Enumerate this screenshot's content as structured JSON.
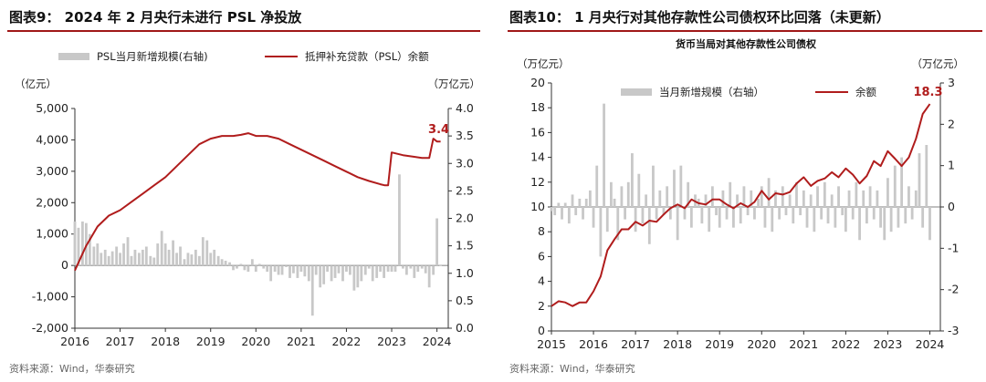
{
  "charts": [
    {
      "title": "图表9： 2024 年 2 月央行未进行 PSL 净投放",
      "source": "资料来源：Wind，华泰研究",
      "chart_data": {
        "type": "bar+line",
        "subtitle": "",
        "y_left_unit": "（亿元）",
        "y_right_unit": "（万亿元）",
        "ylim_left": [
          -2000,
          5000
        ],
        "ylim_right": [
          0.0,
          4.0
        ],
        "yticks_left": [
          "5,000",
          "4,000",
          "3,000",
          "2,000",
          "1,000",
          "0",
          "-1,000",
          "-2,000"
        ],
        "yticks_right": [
          "4.0",
          "3.5",
          "3.0",
          "2.5",
          "2.0",
          "1.5",
          "1.0",
          "0.5",
          "0.0"
        ],
        "x_ticks": [
          "2016",
          "2017",
          "2018",
          "2019",
          "2020",
          "2021",
          "2022",
          "2023",
          "2024"
        ],
        "x_range": [
          2016.0,
          2024.25
        ],
        "legend": "top",
        "bar_series": {
          "name": "PSL当月新增规模(右轴)",
          "color": "#c8c8c8",
          "axis": "left",
          "x": [
            2016.0,
            2016.08,
            2016.17,
            2016.25,
            2016.33,
            2016.42,
            2016.5,
            2016.58,
            2016.67,
            2016.75,
            2016.83,
            2016.92,
            2017.0,
            2017.08,
            2017.17,
            2017.25,
            2017.33,
            2017.42,
            2017.5,
            2017.58,
            2017.67,
            2017.75,
            2017.83,
            2017.92,
            2018.0,
            2018.08,
            2018.17,
            2018.25,
            2018.33,
            2018.42,
            2018.5,
            2018.58,
            2018.67,
            2018.75,
            2018.83,
            2018.92,
            2019.0,
            2019.08,
            2019.17,
            2019.25,
            2019.33,
            2019.42,
            2019.5,
            2019.58,
            2019.67,
            2019.75,
            2019.83,
            2019.92,
            2020.0,
            2020.08,
            2020.17,
            2020.25,
            2020.33,
            2020.42,
            2020.5,
            2020.58,
            2020.67,
            2020.75,
            2020.83,
            2020.92,
            2021.0,
            2021.08,
            2021.17,
            2021.25,
            2021.33,
            2021.42,
            2021.5,
            2021.58,
            2021.67,
            2021.75,
            2021.83,
            2021.92,
            2022.0,
            2022.08,
            2022.17,
            2022.25,
            2022.33,
            2022.42,
            2022.5,
            2022.58,
            2022.67,
            2022.75,
            2022.83,
            2022.92,
            2023.0,
            2023.08,
            2023.17,
            2023.25,
            2023.33,
            2023.42,
            2023.5,
            2023.58,
            2023.67,
            2023.75,
            2023.83,
            2023.92,
            2024.0,
            2024.08
          ],
          "values": [
            1400,
            1200,
            1400,
            1350,
            1000,
            600,
            700,
            400,
            500,
            300,
            450,
            600,
            400,
            700,
            900,
            300,
            500,
            400,
            500,
            600,
            300,
            250,
            700,
            1100,
            700,
            500,
            800,
            400,
            600,
            200,
            400,
            350,
            500,
            300,
            900,
            800,
            400,
            500,
            300,
            200,
            150,
            100,
            -150,
            -100,
            50,
            -150,
            -200,
            200,
            -200,
            50,
            -100,
            -200,
            -500,
            -200,
            -300,
            -300,
            -50,
            -400,
            -250,
            -400,
            -200,
            -350,
            -500,
            -1600,
            -300,
            -700,
            -600,
            -200,
            -500,
            -400,
            -250,
            -500,
            -200,
            -300,
            -800,
            -700,
            -500,
            -300,
            -100,
            -500,
            -400,
            -200,
            -400,
            -200,
            -200,
            -200,
            2900,
            -100,
            -300,
            -100,
            -400,
            -200,
            -100,
            -250,
            -700,
            -300,
            1500,
            0
          ]
        },
        "line_series": {
          "name": "抵押补充贷款（PSL）余额",
          "color": "#b01c1c",
          "axis": "right",
          "x": [
            2016.0,
            2016.25,
            2016.5,
            2016.75,
            2017.0,
            2017.25,
            2017.5,
            2017.75,
            2018.0,
            2018.25,
            2018.5,
            2018.75,
            2019.0,
            2019.25,
            2019.5,
            2019.67,
            2019.83,
            2020.0,
            2020.25,
            2020.5,
            2020.75,
            2021.0,
            2021.25,
            2021.5,
            2021.75,
            2022.0,
            2022.25,
            2022.5,
            2022.75,
            2022.85,
            2022.92,
            2023.0,
            2023.25,
            2023.5,
            2023.67,
            2023.83,
            2023.92,
            2024.0,
            2024.08
          ],
          "values": [
            1.05,
            1.5,
            1.85,
            2.05,
            2.15,
            2.3,
            2.45,
            2.6,
            2.75,
            2.95,
            3.15,
            3.35,
            3.45,
            3.5,
            3.5,
            3.52,
            3.55,
            3.5,
            3.5,
            3.45,
            3.35,
            3.25,
            3.15,
            3.05,
            2.95,
            2.85,
            2.75,
            2.68,
            2.62,
            2.6,
            2.6,
            3.2,
            3.15,
            3.12,
            3.1,
            3.1,
            3.45,
            3.4,
            3.4
          ]
        },
        "annotation": {
          "text": "3.4",
          "x": 2024.08,
          "y": 3.4
        }
      }
    },
    {
      "title": "图表10： 1 月央行对其他存款性公司债权环比回落（未更新）",
      "source": "资料来源：Wind，华泰研究",
      "chart_data": {
        "type": "bar+line",
        "subtitle": "货币当局对其他存款性公司债权",
        "y_left_unit": "（万亿元）",
        "y_right_unit": "（万亿元）",
        "ylim_left": [
          0,
          20
        ],
        "ylim_right": [
          -3,
          3
        ],
        "yticks_left": [
          "20",
          "18",
          "16",
          "14",
          "12",
          "10",
          "8",
          "6",
          "4",
          "2",
          "0"
        ],
        "yticks_right": [
          "3",
          "2",
          "1",
          "0",
          "-1",
          "-2",
          "-3"
        ],
        "x_ticks": [
          "2015",
          "2016",
          "2017",
          "2018",
          "2019",
          "2020",
          "2021",
          "2022",
          "2023",
          "2024"
        ],
        "x_range": [
          2015.0,
          2024.25
        ],
        "legend": "top",
        "bar_series": {
          "name": "当月新增规模（右轴）",
          "color": "#c8c8c8",
          "axis": "right",
          "x": [
            2015.0,
            2015.08,
            2015.17,
            2015.25,
            2015.33,
            2015.42,
            2015.5,
            2015.58,
            2015.67,
            2015.75,
            2015.83,
            2015.92,
            2016.0,
            2016.08,
            2016.17,
            2016.25,
            2016.33,
            2016.42,
            2016.5,
            2016.58,
            2016.67,
            2016.75,
            2016.83,
            2016.92,
            2017.0,
            2017.08,
            2017.17,
            2017.25,
            2017.33,
            2017.42,
            2017.5,
            2017.58,
            2017.67,
            2017.75,
            2017.83,
            2017.92,
            2018.0,
            2018.08,
            2018.17,
            2018.25,
            2018.33,
            2018.42,
            2018.5,
            2018.58,
            2018.67,
            2018.75,
            2018.83,
            2018.92,
            2019.0,
            2019.08,
            2019.17,
            2019.25,
            2019.33,
            2019.42,
            2019.5,
            2019.58,
            2019.67,
            2019.75,
            2019.83,
            2019.92,
            2020.0,
            2020.08,
            2020.17,
            2020.25,
            2020.33,
            2020.42,
            2020.5,
            2020.58,
            2020.67,
            2020.75,
            2020.83,
            2020.92,
            2021.0,
            2021.08,
            2021.17,
            2021.25,
            2021.33,
            2021.42,
            2021.5,
            2021.58,
            2021.67,
            2021.75,
            2021.83,
            2021.92,
            2022.0,
            2022.08,
            2022.17,
            2022.25,
            2022.33,
            2022.42,
            2022.5,
            2022.58,
            2022.67,
            2022.75,
            2022.83,
            2022.92,
            2023.0,
            2023.08,
            2023.17,
            2023.25,
            2023.33,
            2023.42,
            2023.5,
            2023.58,
            2023.67,
            2023.75,
            2023.83,
            2023.92,
            2024.0
          ],
          "values": [
            -0.1,
            -0.2,
            0.1,
            -0.3,
            0.1,
            -0.4,
            0.3,
            -0.2,
            0.2,
            -0.3,
            0.2,
            0.4,
            -0.5,
            1.0,
            -1.2,
            2.5,
            -0.6,
            0.6,
            0.2,
            -0.8,
            0.5,
            -0.3,
            0.6,
            1.3,
            -0.6,
            0.8,
            -0.4,
            0.3,
            -0.9,
            1.0,
            -0.3,
            0.4,
            -0.2,
            0.5,
            -0.3,
            0.9,
            -0.8,
            1.0,
            -0.3,
            0.6,
            -0.5,
            0.3,
            0.2,
            -0.4,
            0.3,
            -0.6,
            0.5,
            -0.2,
            -0.5,
            0.4,
            -0.3,
            0.6,
            -0.5,
            0.3,
            -0.4,
            0.5,
            -0.2,
            0.4,
            -0.3,
            0.2,
            0.5,
            -0.5,
            0.7,
            -0.6,
            0.4,
            -0.3,
            0.5,
            -0.2,
            0.3,
            -0.4,
            0.6,
            -0.2,
            0.4,
            -0.5,
            0.3,
            -0.6,
            0.5,
            -0.3,
            0.6,
            -0.4,
            0.3,
            -0.5,
            0.5,
            -0.2,
            -0.6,
            0.4,
            -0.3,
            0.6,
            -0.8,
            0.4,
            -0.4,
            0.5,
            -0.3,
            0.4,
            -0.5,
            -0.8,
            0.7,
            -0.6,
            1.0,
            -0.5,
            1.2,
            -0.4,
            0.5,
            -0.3,
            0.4,
            1.3,
            -0.5,
            1.5,
            -0.8
          ]
        },
        "line_series": {
          "name": "余额",
          "color": "#b01c1c",
          "axis": "left",
          "x": [
            2015.0,
            2015.17,
            2015.33,
            2015.5,
            2015.67,
            2015.83,
            2016.0,
            2016.17,
            2016.33,
            2016.5,
            2016.67,
            2016.83,
            2017.0,
            2017.17,
            2017.33,
            2017.5,
            2017.67,
            2017.83,
            2018.0,
            2018.17,
            2018.33,
            2018.5,
            2018.67,
            2018.83,
            2019.0,
            2019.17,
            2019.33,
            2019.5,
            2019.67,
            2019.83,
            2020.0,
            2020.17,
            2020.33,
            2020.5,
            2020.67,
            2020.83,
            2021.0,
            2021.17,
            2021.33,
            2021.5,
            2021.67,
            2021.83,
            2022.0,
            2022.17,
            2022.33,
            2022.5,
            2022.67,
            2022.83,
            2023.0,
            2023.17,
            2023.33,
            2023.5,
            2023.67,
            2023.83,
            2024.0
          ],
          "values": [
            2.0,
            2.4,
            2.3,
            2.0,
            2.3,
            2.3,
            3.2,
            4.4,
            6.5,
            7.4,
            8.2,
            8.2,
            8.8,
            8.5,
            8.9,
            8.8,
            9.4,
            9.9,
            10.2,
            9.9,
            10.6,
            10.3,
            10.2,
            10.6,
            10.6,
            10.2,
            9.9,
            10.3,
            10.0,
            10.4,
            11.3,
            10.6,
            11.1,
            11.0,
            11.2,
            11.9,
            12.4,
            11.7,
            12.1,
            12.3,
            12.8,
            12.4,
            13.1,
            12.6,
            11.9,
            12.5,
            13.7,
            13.3,
            14.5,
            13.9,
            13.3,
            14.0,
            15.5,
            17.5,
            18.3
          ]
        },
        "annotation": {
          "text": "18.3",
          "x": 2024.0,
          "y": 18.3
        }
      }
    }
  ]
}
